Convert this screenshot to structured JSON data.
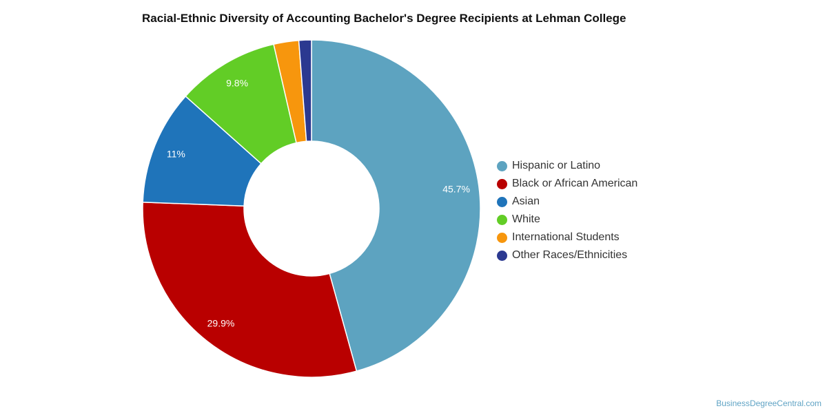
{
  "chart_data": {
    "type": "pie",
    "title": "Racial-Ethnic Diversity of Accounting Bachelor's Degree Recipients at Lehman College",
    "donut": true,
    "legend_position": "right",
    "categories": [
      "Hispanic or Latino",
      "Black or African American",
      "Asian",
      "White",
      "International Students",
      "Other Races/Ethnicities"
    ],
    "values": [
      45.7,
      29.9,
      11.0,
      9.8,
      2.4,
      1.2
    ],
    "data_labels": [
      "45.7%",
      "29.9%",
      "11%",
      "9.8%",
      "",
      ""
    ],
    "colors": [
      "#5da3c0",
      "#b90000",
      "#1f74ba",
      "#62cd26",
      "#f7960d",
      "#2b3990"
    ]
  },
  "credit": "BusinessDegreeCentral.com"
}
